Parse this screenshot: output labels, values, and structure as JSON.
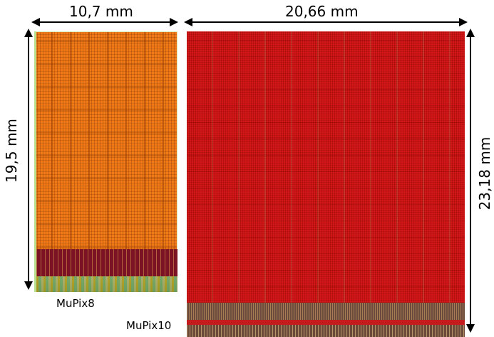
{
  "dimensions": {
    "mupix8_width": "10,7 mm",
    "mupix8_height": "19,5 mm",
    "mupix10_width": "20,66 mm",
    "mupix10_height": "23,18 mm"
  },
  "labels": {
    "mupix8": "MuPix8",
    "mupix10": "MuPix10"
  },
  "colors": {
    "mupix8_matrix": "#f07a18",
    "mupix8_periphery": "#7c1324",
    "mupix10_matrix": "#d41818",
    "mupix10_periphery": "#6a4a3a"
  }
}
